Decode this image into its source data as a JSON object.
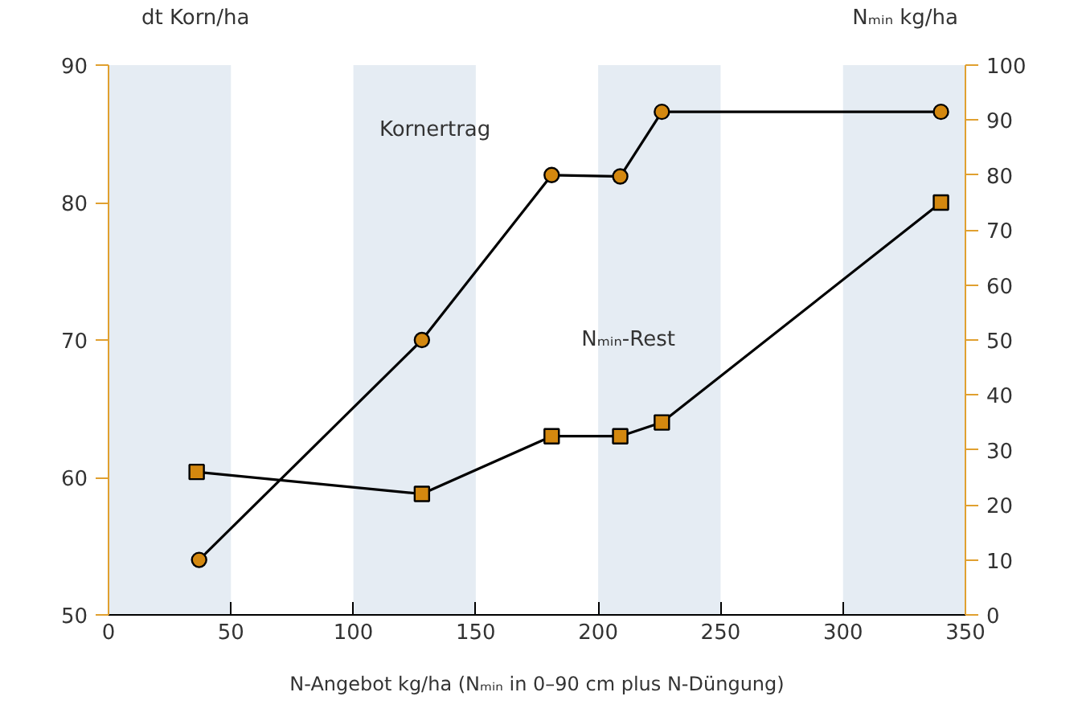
{
  "chart_data": {
    "type": "line",
    "xlabel": "N-Angebot kg/ha (Nₘᵢₙ in 0–90 cm plus N-Düngung)",
    "ylabel": "dt Korn/ha",
    "y2label": "Nₘᵢₙ kg/ha",
    "xlim": [
      0,
      350
    ],
    "xticks": [
      0,
      50,
      100,
      150,
      200,
      250,
      300,
      350
    ],
    "ylim": [
      50,
      90
    ],
    "yticks": [
      50,
      60,
      70,
      80,
      90
    ],
    "y2lim": [
      0,
      100
    ],
    "y2ticks": [
      0,
      10,
      20,
      30,
      40,
      50,
      60,
      70,
      80,
      90,
      100
    ],
    "series": [
      {
        "name": "Kornertrag",
        "color": "#d4880f",
        "marker": "circle",
        "x": [
          37,
          128,
          181,
          209,
          226,
          340
        ],
        "values": [
          54,
          70,
          82,
          81.9,
          86.6,
          86.6
        ]
      },
      {
        "name": "Nₘᵢₙ-Rest",
        "color": "#d4880f",
        "marker": "square",
        "axis": "y2",
        "x": [
          36,
          128,
          181,
          209,
          226,
          340
        ],
        "values": [
          26,
          22,
          32.5,
          32.5,
          35,
          75
        ]
      }
    ],
    "bands": [
      {
        "axis": "x",
        "from": 0,
        "to": 50,
        "color": "#e5ecf3"
      },
      {
        "axis": "x",
        "from": 100,
        "to": 150,
        "color": "#e5ecf3"
      },
      {
        "axis": "x",
        "from": 200,
        "to": 250,
        "color": "#e5ecf3"
      },
      {
        "axis": "x",
        "from": 300,
        "to": 350,
        "color": "#e5ecf3"
      }
    ]
  }
}
